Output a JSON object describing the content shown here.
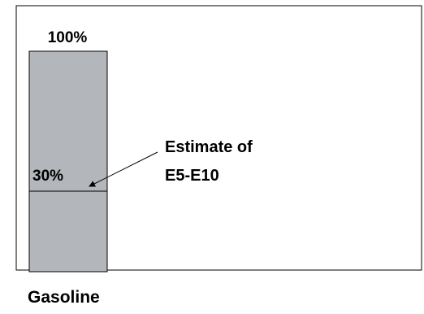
{
  "chart_data": {
    "type": "bar",
    "categories": [
      "Gasoline"
    ],
    "values": [
      100
    ],
    "ylim": [
      0,
      100
    ],
    "value_label": "100%",
    "marker": {
      "value": 30,
      "label": "30%"
    },
    "annotation": {
      "lines": [
        "Estimate of",
        "E5-E10"
      ]
    },
    "grid": false,
    "colors": {
      "bar": "#b3b6ba",
      "frame": "#000000",
      "text": "#000000"
    }
  }
}
